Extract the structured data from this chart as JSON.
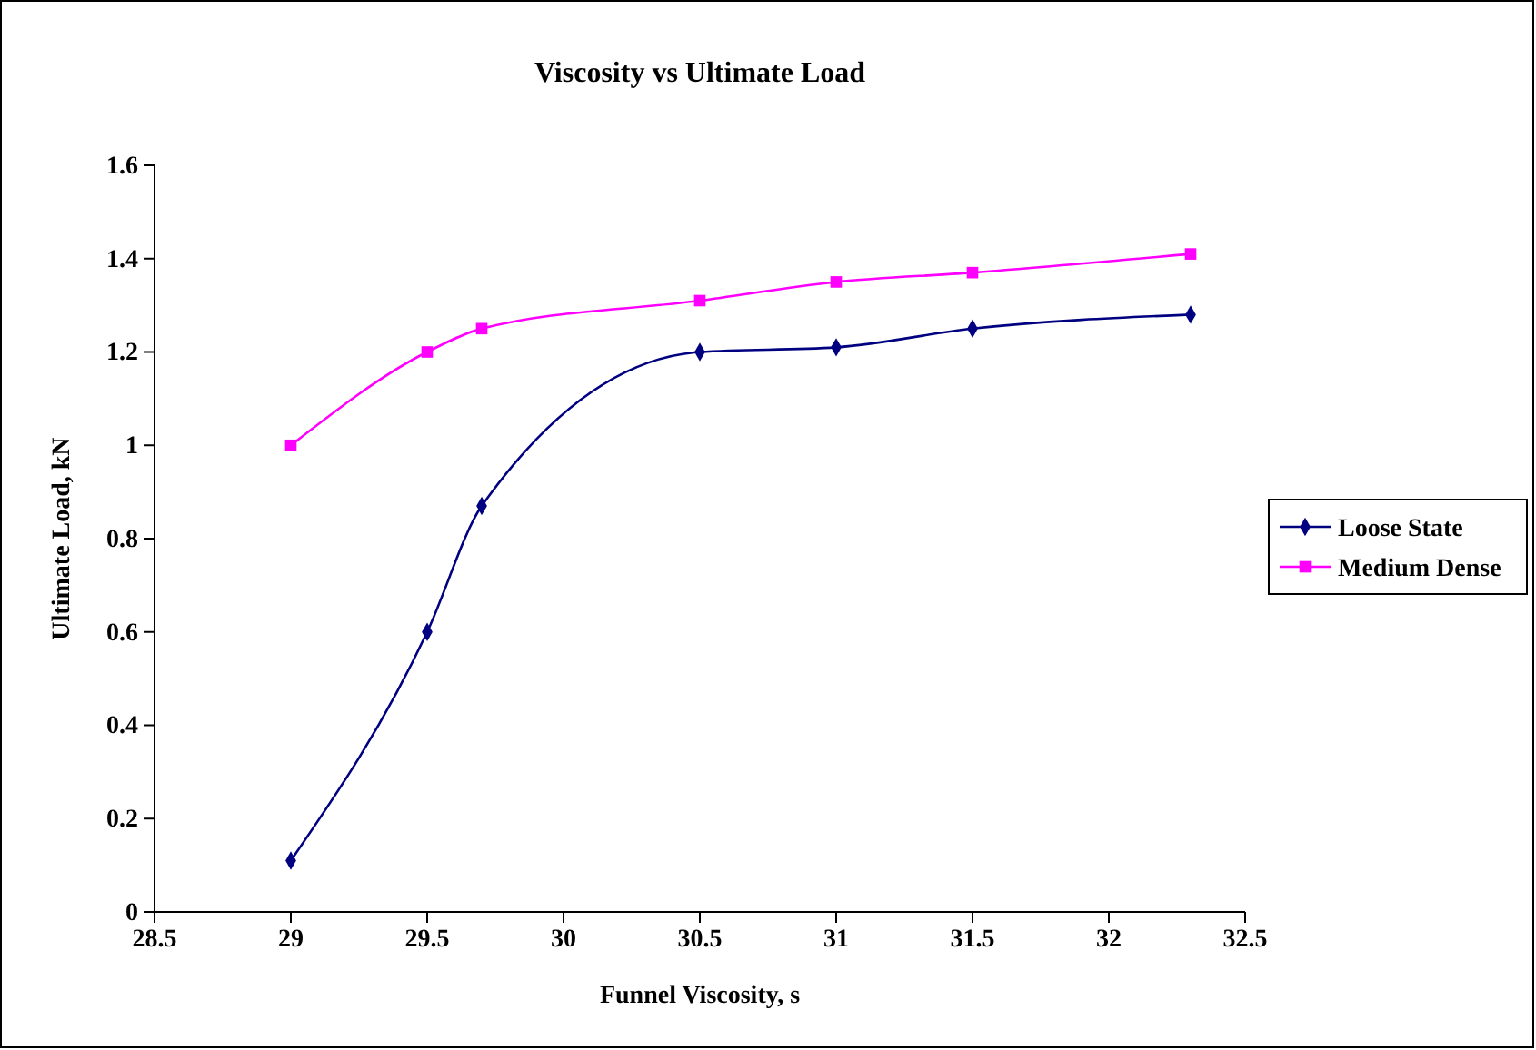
{
  "chart_data": {
    "type": "line",
    "title": "Viscosity vs Ultimate Load",
    "xlabel": "Funnel Viscosity, s",
    "ylabel": "Ultimate Load, kN",
    "x": [
      29,
      29.5,
      29.7,
      30.5,
      31,
      31.5,
      32.3
    ],
    "series": [
      {
        "name": "Loose State",
        "color": "#000080",
        "marker": "diamond",
        "values": [
          0.11,
          0.6,
          0.87,
          1.2,
          1.21,
          1.25,
          1.28
        ]
      },
      {
        "name": "Medium Dense",
        "color": "#ff00ff",
        "marker": "square",
        "values": [
          1.0,
          1.2,
          1.25,
          1.31,
          1.35,
          1.37,
          1.41
        ]
      }
    ],
    "xlim": [
      28.5,
      32.5
    ],
    "xticks": [
      28.5,
      29,
      29.5,
      30,
      30.5,
      31,
      31.5,
      32,
      32.5
    ],
    "ylim": [
      0,
      1.6
    ],
    "yticks": [
      0,
      0.2,
      0.4,
      0.6,
      0.8,
      1,
      1.2,
      1.4,
      1.6
    ],
    "legend": "right",
    "grid": false,
    "line_style": "solid"
  }
}
